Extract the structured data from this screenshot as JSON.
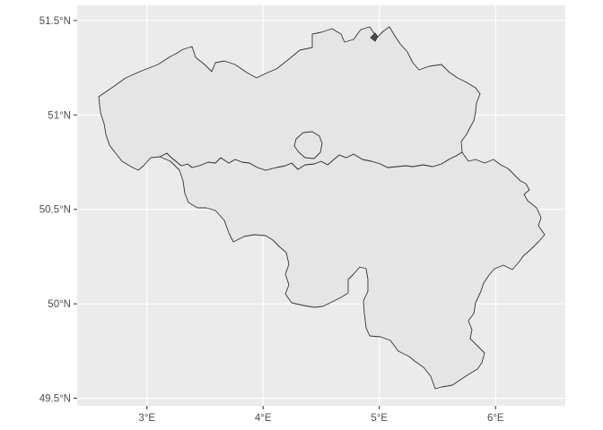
{
  "map": {
    "x_axis": {
      "ticks": [
        3,
        4,
        5,
        6
      ],
      "labels": [
        "3°E",
        "4°E",
        "5°E",
        "6°E"
      ],
      "range": [
        2.4,
        6.6
      ]
    },
    "y_axis": {
      "ticks": [
        49.5,
        50.0,
        50.5,
        51.0,
        51.5
      ],
      "labels": [
        "49.5°N",
        "50°N",
        "50.5°N",
        "51°N",
        "51.5°N"
      ],
      "range": [
        49.46,
        51.58
      ]
    },
    "grid": true,
    "colors": {
      "panel_background": "#ebebeb",
      "gridline": "#ffffff",
      "region_fill": "#e5e5e5",
      "region_outline": "#333333",
      "tick_label": "#4d4d4d"
    },
    "regions": [
      {
        "id": "flanders"
      },
      {
        "id": "wallonia"
      },
      {
        "id": "brussels"
      },
      {
        "id": "baarle-hertog-enclave"
      }
    ]
  }
}
